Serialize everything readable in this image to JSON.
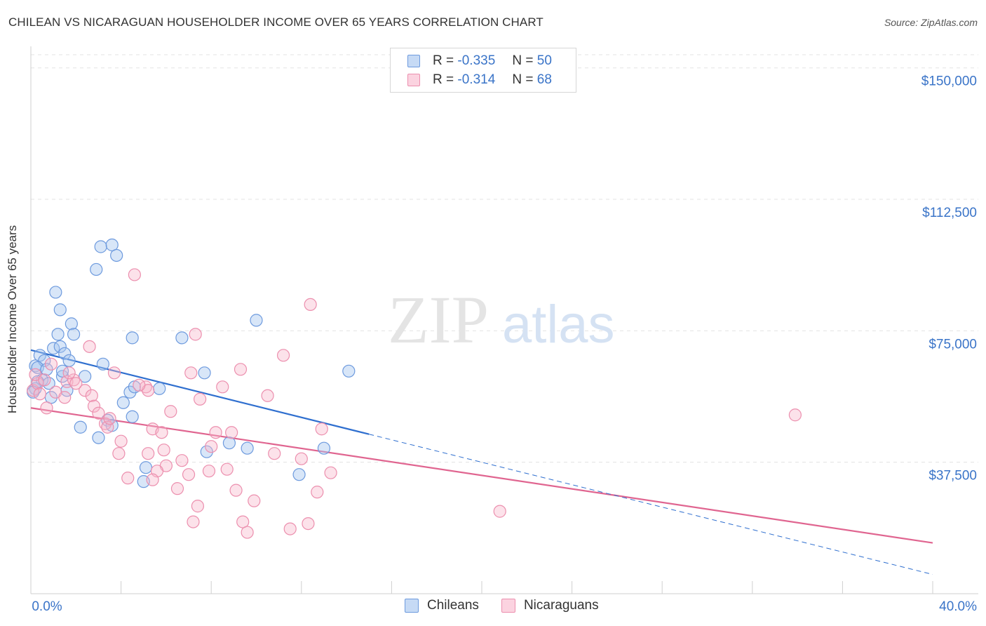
{
  "title": "CHILEAN VS NICARAGUAN HOUSEHOLDER INCOME OVER 65 YEARS CORRELATION CHART",
  "source": "Source: ZipAtlas.com",
  "watermark": {
    "zip": "ZIP",
    "atlas": "atlas"
  },
  "legend_top": {
    "rows": [
      {
        "r_label": "R =",
        "r_value": "-0.335",
        "n_label": "N =",
        "n_value": "50",
        "color": "#a9c8f0"
      },
      {
        "r_label": "R =",
        "r_value": "-0.314",
        "n_label": "N =",
        "n_value": "68",
        "color": "#f7b6cb"
      }
    ]
  },
  "legend_bottom": {
    "items": [
      {
        "label": "Chileans",
        "color": "#a9c8f0"
      },
      {
        "label": "Nicaraguans",
        "color": "#f7b6cb"
      }
    ]
  },
  "chart_data": {
    "type": "scatter",
    "ylabel": "Householder Income Over 65 years",
    "x_tick_labels": [
      "0.0%",
      "40.0%"
    ],
    "y_tick_labels": [
      "$150,000",
      "$112,500",
      "$75,000",
      "$37,500"
    ],
    "y_ticks": [
      150000,
      112500,
      75000,
      37500
    ],
    "xlim": [
      0,
      40
    ],
    "ylim": [
      0,
      153750
    ],
    "grid": true,
    "colors": {
      "chileans": "#5b8fd6",
      "nicaraguans": "#e8779e",
      "chileans_line": "#2f6fcf",
      "nicaraguans_line": "#e06590"
    },
    "series": [
      {
        "name": "Chileans",
        "points": [
          [
            0.2,
            65000
          ],
          [
            0.4,
            68000
          ],
          [
            0.6,
            66500
          ],
          [
            0.3,
            64500
          ],
          [
            0.7,
            64000
          ],
          [
            0.5,
            61000
          ],
          [
            1.0,
            70000
          ],
          [
            1.3,
            70500
          ],
          [
            1.5,
            68500
          ],
          [
            0.9,
            56000
          ],
          [
            1.6,
            58000
          ],
          [
            1.7,
            66500
          ],
          [
            1.4,
            62000
          ],
          [
            1.2,
            74000
          ],
          [
            1.3,
            81000
          ],
          [
            1.4,
            63500
          ],
          [
            1.1,
            86000
          ],
          [
            2.4,
            62000
          ],
          [
            1.8,
            77000
          ],
          [
            1.9,
            74000
          ],
          [
            3.1,
            99000
          ],
          [
            3.6,
            99500
          ],
          [
            3.8,
            96500
          ],
          [
            2.9,
            92500
          ],
          [
            3.2,
            65500
          ],
          [
            4.5,
            73000
          ],
          [
            4.4,
            57500
          ],
          [
            4.6,
            59000
          ],
          [
            4.1,
            54500
          ],
          [
            4.5,
            50500
          ],
          [
            3.4,
            49500
          ],
          [
            3.6,
            48000
          ],
          [
            2.2,
            47500
          ],
          [
            3.0,
            44500
          ],
          [
            5.7,
            58500
          ],
          [
            6.7,
            73000
          ],
          [
            7.7,
            63000
          ],
          [
            8.8,
            43000
          ],
          [
            9.6,
            41500
          ],
          [
            10.0,
            78000
          ],
          [
            11.9,
            34000
          ],
          [
            13.0,
            41500
          ],
          [
            14.1,
            63500
          ],
          [
            7.8,
            40500
          ],
          [
            5.1,
            36000
          ],
          [
            5.0,
            32000
          ],
          [
            0.8,
            60000
          ],
          [
            0.2,
            58500
          ],
          [
            0.3,
            60500
          ],
          [
            0.1,
            57500
          ]
        ]
      },
      {
        "name": "Nicaraguans",
        "points": [
          [
            0.1,
            58000
          ],
          [
            0.3,
            60000
          ],
          [
            0.2,
            62500
          ],
          [
            0.6,
            61000
          ],
          [
            1.1,
            57500
          ],
          [
            1.5,
            56000
          ],
          [
            1.6,
            60500
          ],
          [
            1.9,
            61000
          ],
          [
            1.7,
            63000
          ],
          [
            2.4,
            58000
          ],
          [
            2.6,
            70500
          ],
          [
            2.7,
            56500
          ],
          [
            2.8,
            53500
          ],
          [
            3.0,
            51500
          ],
          [
            3.3,
            48500
          ],
          [
            3.4,
            47500
          ],
          [
            3.5,
            50000
          ],
          [
            3.7,
            63000
          ],
          [
            3.9,
            40000
          ],
          [
            4.0,
            43500
          ],
          [
            4.3,
            33000
          ],
          [
            4.6,
            91000
          ],
          [
            5.1,
            59000
          ],
          [
            5.2,
            58000
          ],
          [
            5.4,
            47000
          ],
          [
            5.2,
            40000
          ],
          [
            5.8,
            46000
          ],
          [
            6.2,
            52000
          ],
          [
            6.0,
            36500
          ],
          [
            5.6,
            35000
          ],
          [
            5.4,
            32500
          ],
          [
            6.5,
            30000
          ],
          [
            7.0,
            34000
          ],
          [
            7.2,
            20500
          ],
          [
            7.4,
            25000
          ],
          [
            7.5,
            55500
          ],
          [
            7.9,
            35000
          ],
          [
            7.1,
            63000
          ],
          [
            7.3,
            74000
          ],
          [
            8.2,
            46000
          ],
          [
            8.5,
            59000
          ],
          [
            8.0,
            42000
          ],
          [
            8.9,
            46000
          ],
          [
            8.7,
            35500
          ],
          [
            9.1,
            29500
          ],
          [
            9.3,
            64000
          ],
          [
            9.4,
            20500
          ],
          [
            9.6,
            17500
          ],
          [
            9.9,
            26500
          ],
          [
            10.5,
            56500
          ],
          [
            10.8,
            40000
          ],
          [
            11.2,
            68000
          ],
          [
            11.5,
            18500
          ],
          [
            12.0,
            38500
          ],
          [
            12.3,
            20000
          ],
          [
            12.4,
            82500
          ],
          [
            12.7,
            29000
          ],
          [
            12.9,
            47000
          ],
          [
            13.3,
            34500
          ],
          [
            20.8,
            23500
          ],
          [
            33.9,
            51000
          ],
          [
            0.4,
            57000
          ],
          [
            0.7,
            53000
          ],
          [
            0.9,
            65500
          ],
          [
            2.0,
            60000
          ],
          [
            4.8,
            59500
          ],
          [
            5.9,
            41000
          ],
          [
            6.7,
            38000
          ]
        ]
      }
    ],
    "trend_lines": [
      {
        "name": "Chileans",
        "x": [
          0,
          15.0
        ],
        "y": [
          69500,
          45500
        ],
        "dashed_extension": {
          "x": [
            15.0,
            40.0
          ],
          "y": [
            45500,
            5500
          ]
        }
      },
      {
        "name": "Nicaraguans",
        "x": [
          0,
          40.0
        ],
        "y": [
          53000,
          14500
        ]
      }
    ]
  }
}
